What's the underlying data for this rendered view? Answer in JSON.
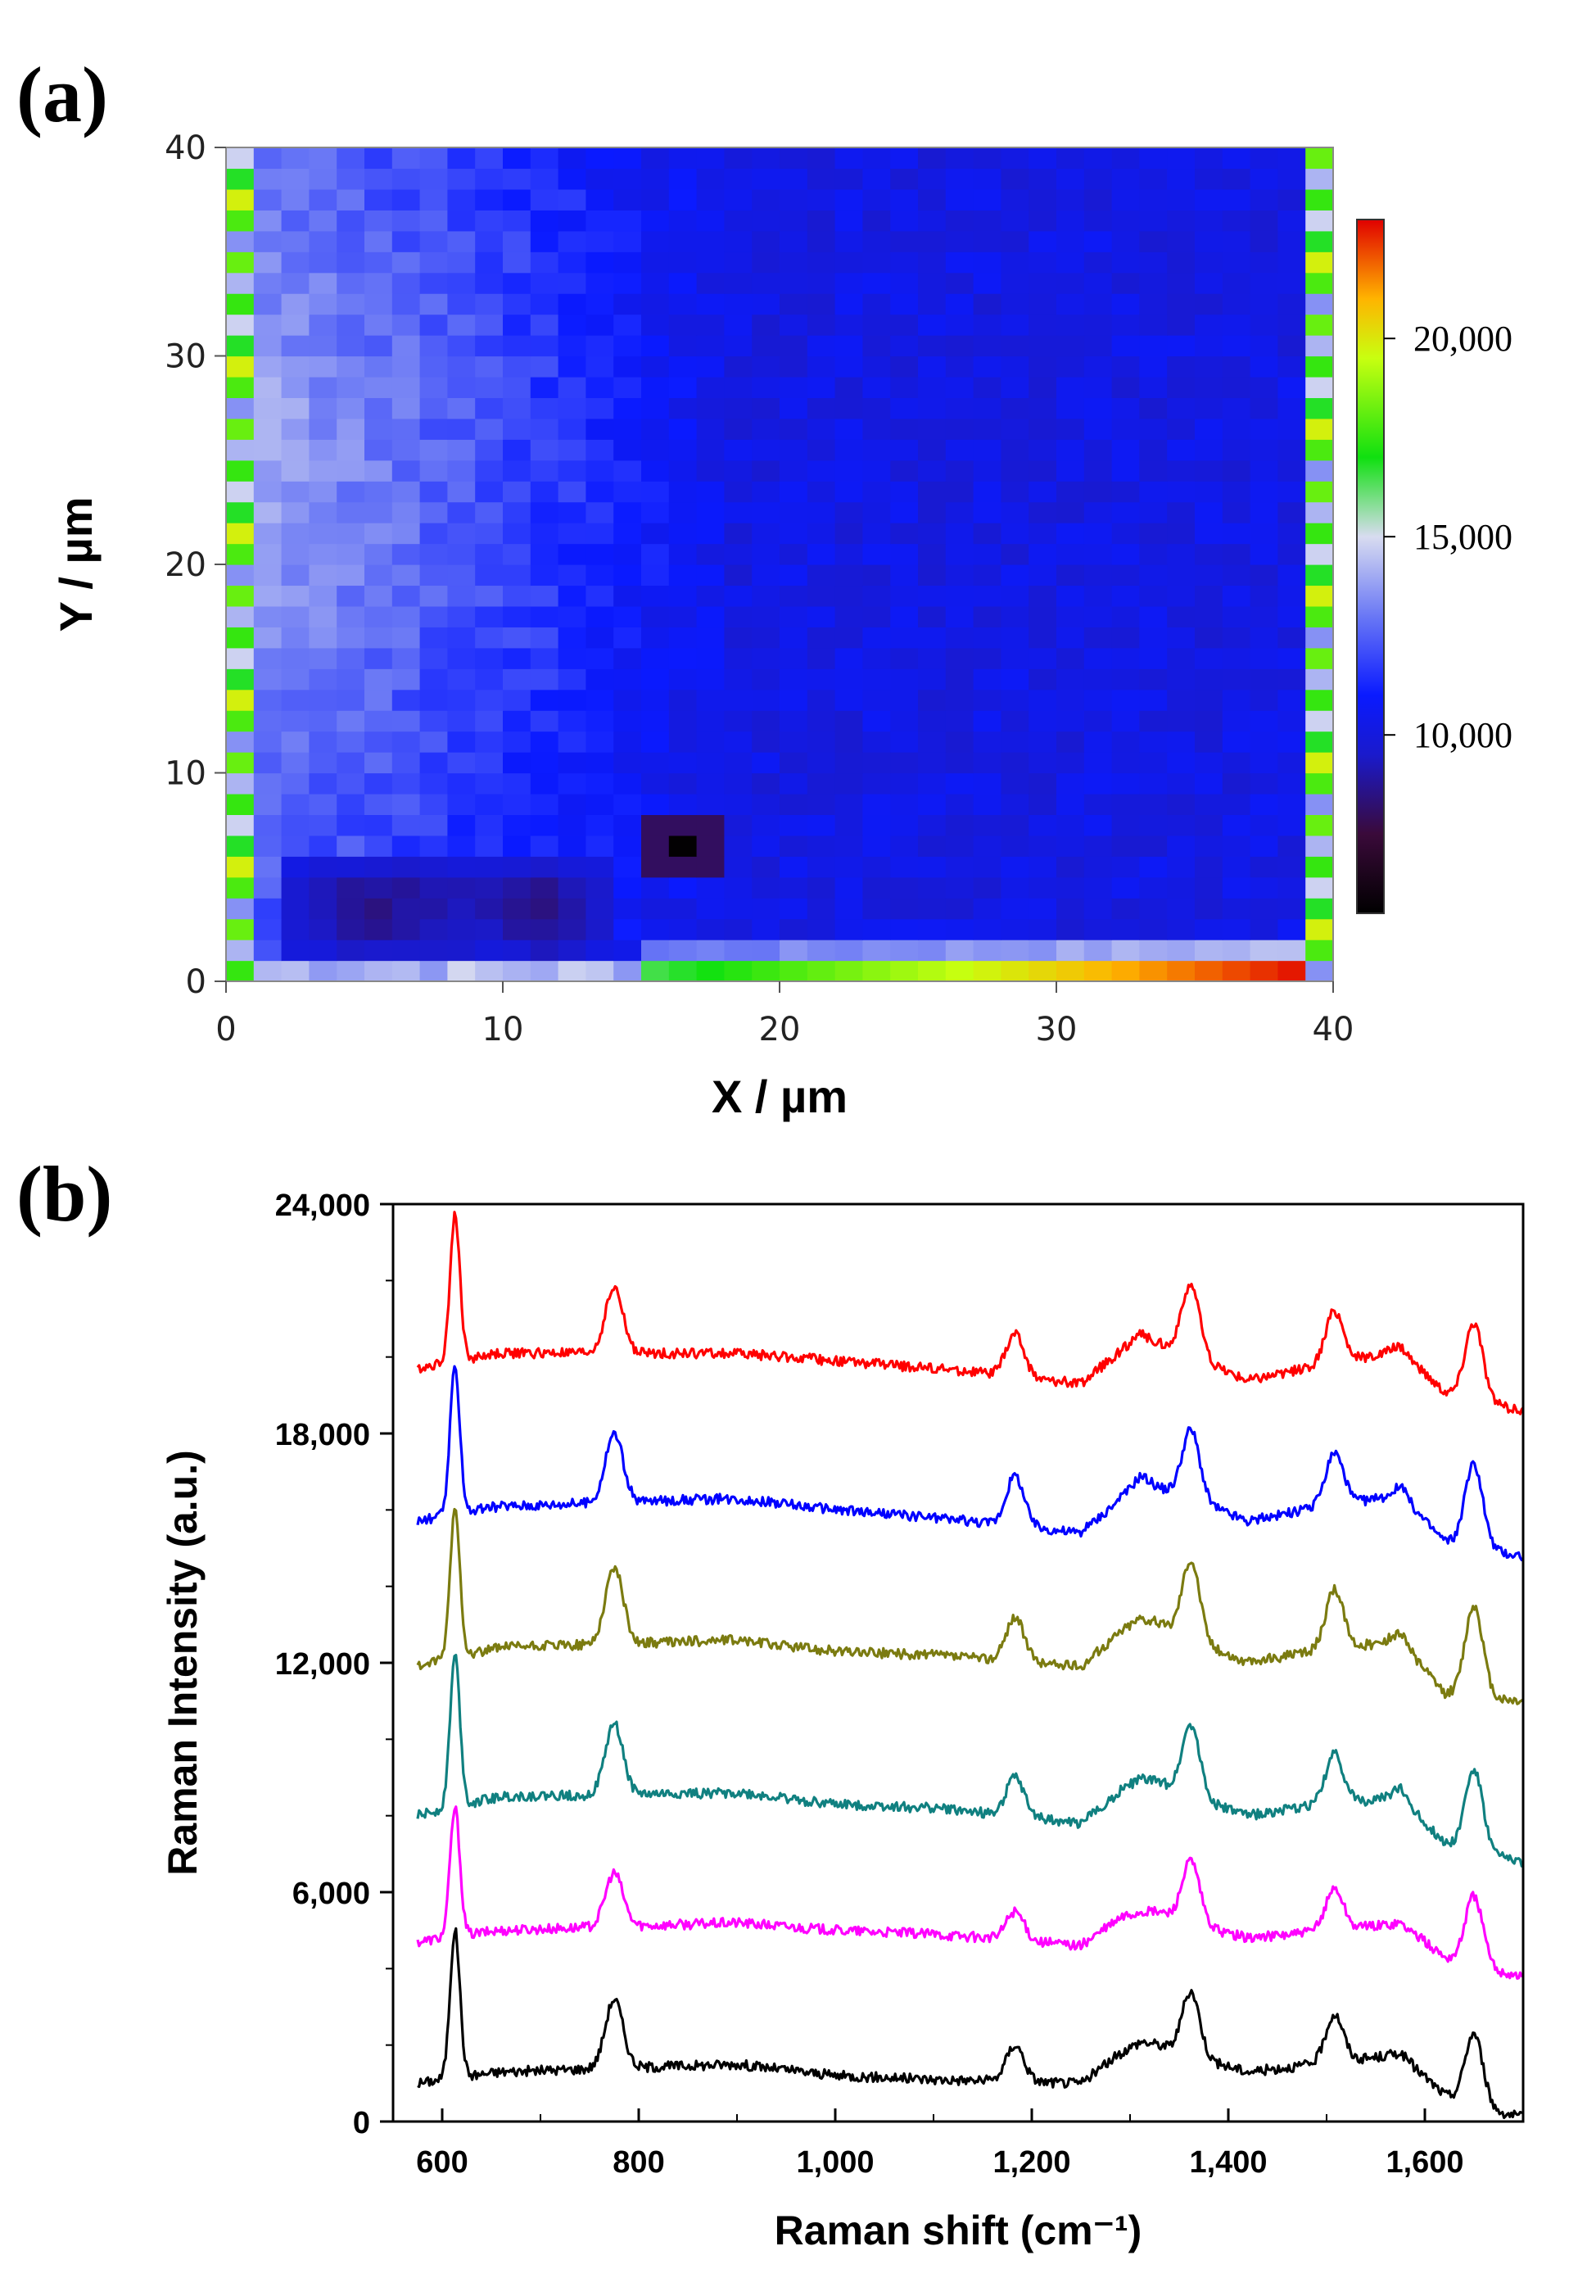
{
  "panels": {
    "a": "(a)",
    "b": "(b)"
  },
  "chart_data": [
    {
      "type": "heatmap",
      "panel": "(a)",
      "xlabel": "X / µm",
      "ylabel": "Y / µm",
      "xlim": [
        0,
        40
      ],
      "ylim": [
        0,
        40
      ],
      "grid_size": [
        40,
        40
      ],
      "xticks": [
        "0",
        "10",
        "20",
        "30",
        "40"
      ],
      "yticks": [
        "0",
        "10",
        "20",
        "30",
        "40"
      ],
      "colorbar": {
        "range": [
          5500,
          23000
        ],
        "ticks": [
          {
            "value": 10000,
            "label": "10,000"
          },
          {
            "value": 15000,
            "label": "15,000"
          },
          {
            "value": 20000,
            "label": "20,000"
          }
        ],
        "colormap": [
          {
            "v": 5500,
            "color": "#000000"
          },
          {
            "v": 7500,
            "color": "#3a0a3a"
          },
          {
            "v": 9500,
            "color": "#1a1acc"
          },
          {
            "v": 11000,
            "color": "#0a1aff"
          },
          {
            "v": 13000,
            "color": "#6a78f5"
          },
          {
            "v": 15000,
            "color": "#d8dcf0"
          },
          {
            "v": 17000,
            "color": "#10e010"
          },
          {
            "v": 19500,
            "color": "#c8ff10"
          },
          {
            "v": 21000,
            "color": "#ffb400"
          },
          {
            "v": 23000,
            "color": "#e00000"
          }
        ]
      }
    },
    {
      "type": "line",
      "panel": "(b)",
      "xlabel": "Raman shift (cm⁻¹)",
      "ylabel": "Raman Intensity (a.u.)",
      "xlim": [
        550,
        1700
      ],
      "ylim": [
        0,
        24000
      ],
      "xticks": [
        "600",
        "800",
        "1,000",
        "1,200",
        "1,400",
        "1,600"
      ],
      "yticks": [
        "0",
        "6,000",
        "12,000",
        "18,000",
        "24,000"
      ],
      "peaks_cm": [
        613,
        775,
        1183,
        1311,
        1362,
        1508,
        1575,
        1650
      ],
      "series": [
        {
          "color": "#000000",
          "points": [
            [
              575,
              1000
            ],
            [
              613,
              5000
            ],
            [
              660,
              1300
            ],
            [
              775,
              3200
            ],
            [
              900,
              1500
            ],
            [
              1000,
              1200
            ],
            [
              1100,
              1100
            ],
            [
              1183,
              2000
            ],
            [
              1250,
              1000
            ],
            [
              1311,
              2100
            ],
            [
              1362,
              3400
            ],
            [
              1420,
              1300
            ],
            [
              1508,
              2800
            ],
            [
              1575,
              1800
            ],
            [
              1620,
              700
            ],
            [
              1650,
              2300
            ],
            [
              1700,
              100
            ]
          ]
        },
        {
          "color": "#ff00ff",
          "points": [
            [
              575,
              4700
            ],
            [
              613,
              8200
            ],
            [
              660,
              5000
            ],
            [
              775,
              6500
            ],
            [
              900,
              5200
            ],
            [
              1000,
              5000
            ],
            [
              1100,
              4900
            ],
            [
              1183,
              5500
            ],
            [
              1250,
              4600
            ],
            [
              1311,
              5500
            ],
            [
              1362,
              6800
            ],
            [
              1420,
              4800
            ],
            [
              1508,
              6100
            ],
            [
              1575,
              5200
            ],
            [
              1620,
              4300
            ],
            [
              1650,
              5900
            ],
            [
              1700,
              3800
            ]
          ]
        },
        {
          "color": "#108080",
          "points": [
            [
              575,
              8000
            ],
            [
              613,
              12200
            ],
            [
              660,
              8500
            ],
            [
              775,
              10400
            ],
            [
              900,
              8600
            ],
            [
              1000,
              8300
            ],
            [
              1100,
              8200
            ],
            [
              1183,
              9000
            ],
            [
              1250,
              7800
            ],
            [
              1311,
              9000
            ],
            [
              1362,
              10400
            ],
            [
              1420,
              8000
            ],
            [
              1508,
              9600
            ],
            [
              1575,
              8700
            ],
            [
              1620,
              7300
            ],
            [
              1650,
              9200
            ],
            [
              1700,
              6800
            ]
          ]
        },
        {
          "color": "#7b7b10",
          "points": [
            [
              575,
              11900
            ],
            [
              613,
              16000
            ],
            [
              660,
              12400
            ],
            [
              775,
              14500
            ],
            [
              900,
              12600
            ],
            [
              1000,
              12300
            ],
            [
              1100,
              12200
            ],
            [
              1183,
              13200
            ],
            [
              1250,
              11900
            ],
            [
              1311,
              13200
            ],
            [
              1362,
              14700
            ],
            [
              1420,
              12000
            ],
            [
              1508,
              13900
            ],
            [
              1575,
              12800
            ],
            [
              1620,
              11200
            ],
            [
              1650,
              13500
            ],
            [
              1700,
              11000
            ]
          ]
        },
        {
          "color": "#0000ff",
          "points": [
            [
              575,
              15700
            ],
            [
              613,
              19700
            ],
            [
              660,
              16100
            ],
            [
              775,
              18000
            ],
            [
              900,
              16300
            ],
            [
              1000,
              16000
            ],
            [
              1100,
              15800
            ],
            [
              1183,
              16900
            ],
            [
              1250,
              15400
            ],
            [
              1311,
              16900
            ],
            [
              1362,
              18100
            ],
            [
              1420,
              15700
            ],
            [
              1508,
              17500
            ],
            [
              1575,
              16600
            ],
            [
              1620,
              15200
            ],
            [
              1650,
              17200
            ],
            [
              1700,
              14800
            ]
          ]
        },
        {
          "color": "#ff0000",
          "points": [
            [
              575,
              19700
            ],
            [
              613,
              23700
            ],
            [
              660,
              20100
            ],
            [
              775,
              21800
            ],
            [
              900,
              20100
            ],
            [
              1000,
              19900
            ],
            [
              1100,
              19700
            ],
            [
              1183,
              20600
            ],
            [
              1250,
              19300
            ],
            [
              1311,
              20600
            ],
            [
              1362,
              21900
            ],
            [
              1420,
              19400
            ],
            [
              1508,
              21200
            ],
            [
              1575,
              20300
            ],
            [
              1620,
              19100
            ],
            [
              1650,
              20900
            ],
            [
              1700,
              18600
            ]
          ]
        }
      ]
    }
  ]
}
